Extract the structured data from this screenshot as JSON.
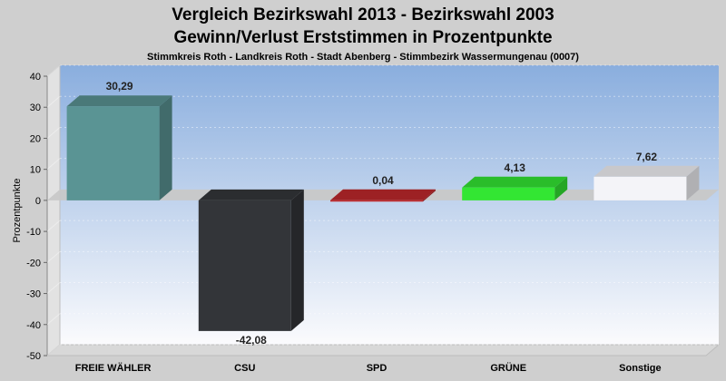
{
  "chart_data": {
    "type": "bar",
    "title_line1": "Vergleich Bezirkswahl 2013 - Bezirkswahl 2003",
    "title_line2": "Gewinn/Verlust Erststimmen in Prozentpunkte",
    "subtitle": "Stimmkreis Roth - Landkreis Roth - Stadt Abenberg - Stimmbezirk Wassermungenau (0007)",
    "ylabel": "Prozentpunkte",
    "xlabel": "",
    "ylim": [
      -50,
      40
    ],
    "yticks": [
      40,
      30,
      20,
      10,
      0,
      -10,
      -20,
      -30,
      -40,
      -50
    ],
    "categories": [
      "FREIE WÄHLER",
      "CSU",
      "SPD",
      "GRÜNE",
      "Sonstige"
    ],
    "values": [
      30.29,
      -42.08,
      0.04,
      4.13,
      7.62
    ],
    "value_labels": [
      "30,29",
      "-42,08",
      "0,04",
      "4,13",
      "7,62"
    ],
    "colors": [
      "#5a9494",
      "#333539",
      "#c0282c",
      "#33e633",
      "#f4f4f8"
    ],
    "grid": true,
    "legend": "none"
  }
}
